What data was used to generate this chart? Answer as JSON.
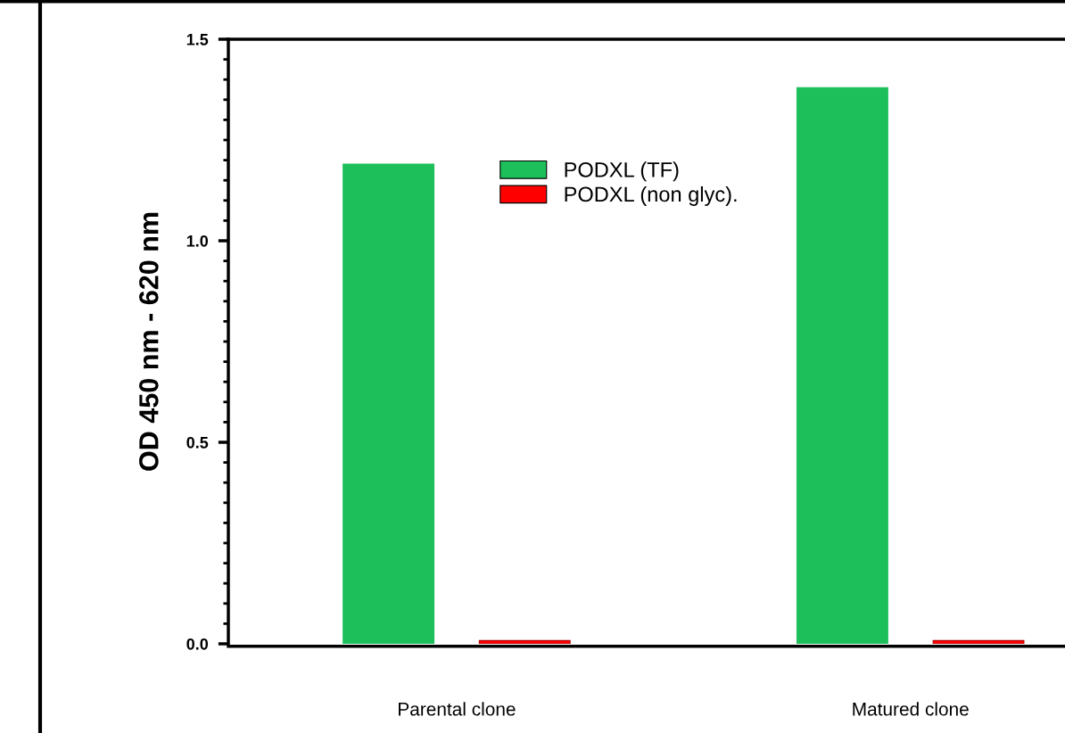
{
  "chart_data": {
    "type": "bar",
    "categories": [
      "Parental clone",
      "Matured clone"
    ],
    "series": [
      {
        "name": "PODXL (TF)",
        "color": "#1dbf5a",
        "values": [
          1.19,
          1.38
        ]
      },
      {
        "name": "PODXL (non glyc).",
        "color": "#ff0000",
        "values": [
          0.008,
          0.008
        ]
      }
    ],
    "ylabel": "OD 450 nm - 620 nm",
    "ylim": [
      0,
      1.5
    ],
    "yticks": [
      {
        "value": 0,
        "label": "0.0"
      },
      {
        "value": 0.5,
        "label": "0.5"
      },
      {
        "value": 1,
        "label": "1.0"
      },
      {
        "value": 1.5,
        "label": "1.5"
      }
    ],
    "grid": false,
    "legend": "top"
  }
}
